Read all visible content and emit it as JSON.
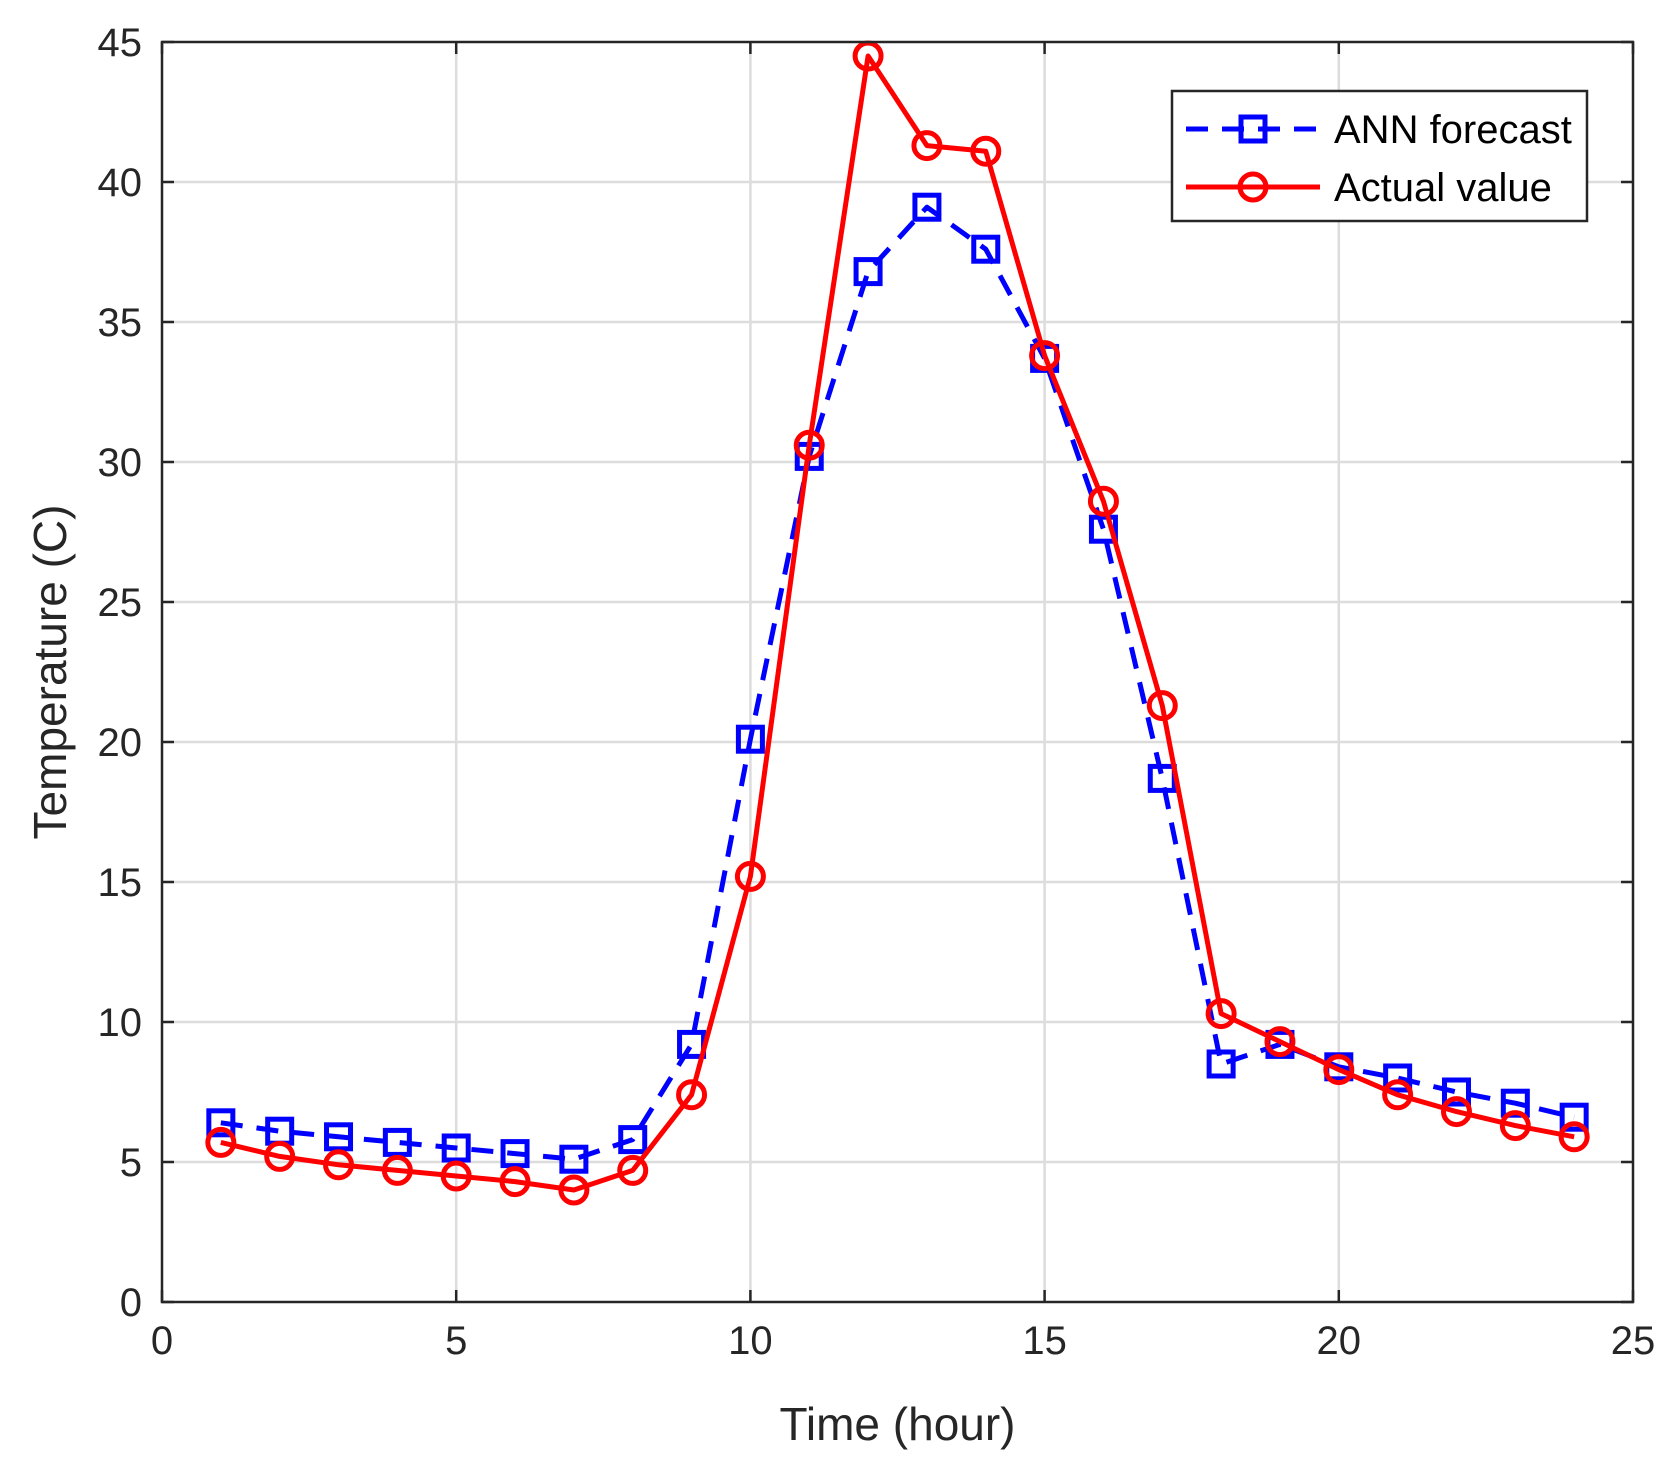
{
  "chart_data": {
    "type": "line",
    "title": "",
    "xlabel": "Time (hour)",
    "ylabel": "Temperature (C)",
    "xlim": [
      0,
      25
    ],
    "ylim": [
      0,
      45
    ],
    "xticks": [
      0,
      5,
      10,
      15,
      20,
      25
    ],
    "yticks": [
      0,
      5,
      10,
      15,
      20,
      25,
      30,
      35,
      40,
      45
    ],
    "grid": true,
    "legend_position": "top-right",
    "x": [
      1,
      2,
      3,
      4,
      5,
      6,
      7,
      8,
      9,
      10,
      11,
      12,
      13,
      14,
      15,
      16,
      17,
      18,
      19,
      20,
      21,
      22,
      23,
      24
    ],
    "series": [
      {
        "name": "ANN forecast",
        "color": "#0000ff",
        "line_style": "dashed",
        "marker": "square",
        "values": [
          6.4,
          6.1,
          5.9,
          5.7,
          5.5,
          5.3,
          5.1,
          5.8,
          9.2,
          20.1,
          30.2,
          36.8,
          39.1,
          37.6,
          33.7,
          27.6,
          18.7,
          8.5,
          9.2,
          8.4,
          8.0,
          7.5,
          7.1,
          6.6
        ]
      },
      {
        "name": "Actual value",
        "color": "#ff0000",
        "line_style": "solid",
        "marker": "circle",
        "values": [
          5.7,
          5.2,
          4.9,
          4.7,
          4.5,
          4.3,
          4.0,
          4.7,
          7.4,
          15.2,
          30.6,
          44.5,
          41.3,
          41.1,
          33.8,
          28.6,
          21.3,
          10.3,
          9.3,
          8.3,
          7.4,
          6.8,
          6.3,
          5.9
        ]
      }
    ]
  }
}
